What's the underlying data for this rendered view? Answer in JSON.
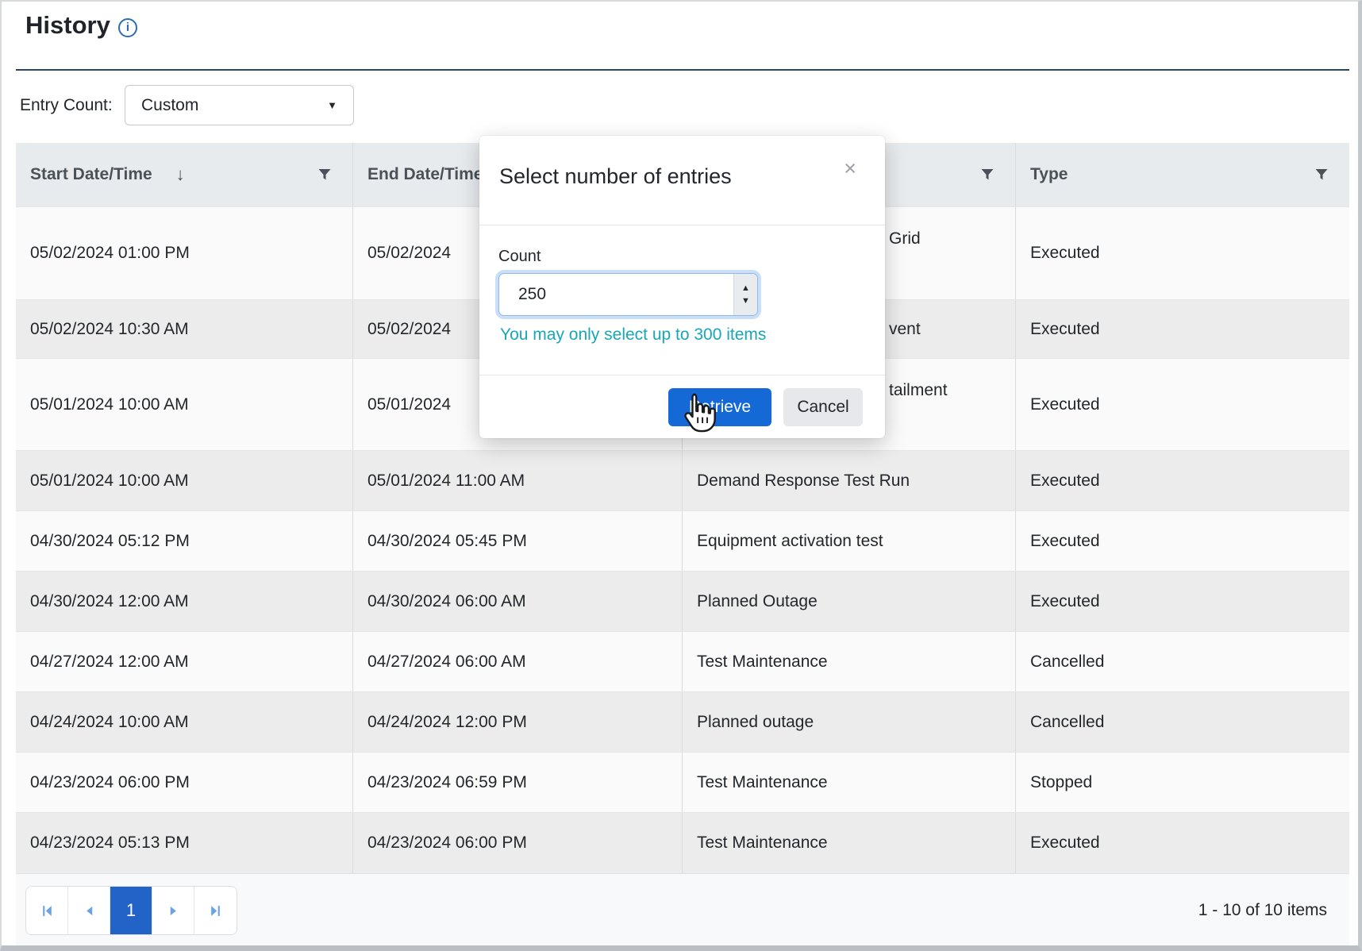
{
  "header": {
    "title": "History",
    "info_icon": "i"
  },
  "filters": {
    "entry_count_label": "Entry Count:",
    "entry_count_value": "Custom",
    "dropdown_caret": "▼"
  },
  "table": {
    "columns": [
      {
        "label": "Start Date/Time",
        "sorted": "desc",
        "sort_icon": "↓",
        "filterable": true
      },
      {
        "label": "End Date/Time",
        "filterable": true
      },
      {
        "label": "",
        "filterable": true
      },
      {
        "label": "Type",
        "filterable": true
      }
    ],
    "rows": [
      {
        "start_datetime": "05/02/2024 01:00 PM",
        "end_datetime": "05/02/2024",
        "name_visible": "Grid",
        "type": "Executed",
        "name_partially_hidden": true,
        "two_line": true
      },
      {
        "start_datetime": "05/02/2024 10:30 AM",
        "end_datetime": "05/02/2024",
        "name_visible": "vent",
        "type": "Executed",
        "name_partially_hidden": true,
        "two_line": false
      },
      {
        "start_datetime": "05/01/2024 10:00 AM",
        "end_datetime": "05/01/2024",
        "name_visible": "tailment",
        "type": "Executed",
        "name_partially_hidden": true,
        "two_line": true
      },
      {
        "start_datetime": "05/01/2024 10:00 AM",
        "end_datetime": "05/01/2024 11:00 AM",
        "name_visible": "Demand Response Test Run",
        "type": "Executed"
      },
      {
        "start_datetime": "04/30/2024 05:12 PM",
        "end_datetime": "04/30/2024 05:45 PM",
        "name_visible": "Equipment activation test",
        "type": "Executed"
      },
      {
        "start_datetime": "04/30/2024 12:00 AM",
        "end_datetime": "04/30/2024 06:00 AM",
        "name_visible": "Planned Outage",
        "type": "Executed"
      },
      {
        "start_datetime": "04/27/2024 12:00 AM",
        "end_datetime": "04/27/2024 06:00 AM",
        "name_visible": "Test Maintenance",
        "type": "Cancelled"
      },
      {
        "start_datetime": "04/24/2024 10:00 AM",
        "end_datetime": "04/24/2024 12:00 PM",
        "name_visible": "Planned outage",
        "type": "Cancelled"
      },
      {
        "start_datetime": "04/23/2024 06:00 PM",
        "end_datetime": "04/23/2024 06:59 PM",
        "name_visible": "Test Maintenance",
        "type": "Stopped"
      },
      {
        "start_datetime": "04/23/2024 05:13 PM",
        "end_datetime": "04/23/2024 06:00 PM",
        "name_visible": "Test Maintenance",
        "type": "Executed"
      }
    ]
  },
  "modal": {
    "title": "Select number of entries",
    "close_icon": "×",
    "count_label": "Count",
    "count_value": "250",
    "spinner_up": "▲",
    "spinner_down": "▼",
    "hint": "You may only select up to 300 items",
    "retrieve_button": "Retrieve",
    "cancel_button": "Cancel"
  },
  "pagination": {
    "current_page": "1",
    "summary": "1 - 10 of 10 items"
  },
  "colors": {
    "primary_button_blue": "#1569d6",
    "pager_active_blue": "#2163c7",
    "hint_teal": "#18a7b7",
    "title_rule_navy": "#2b4763",
    "header_bg": "#e8ebee"
  }
}
